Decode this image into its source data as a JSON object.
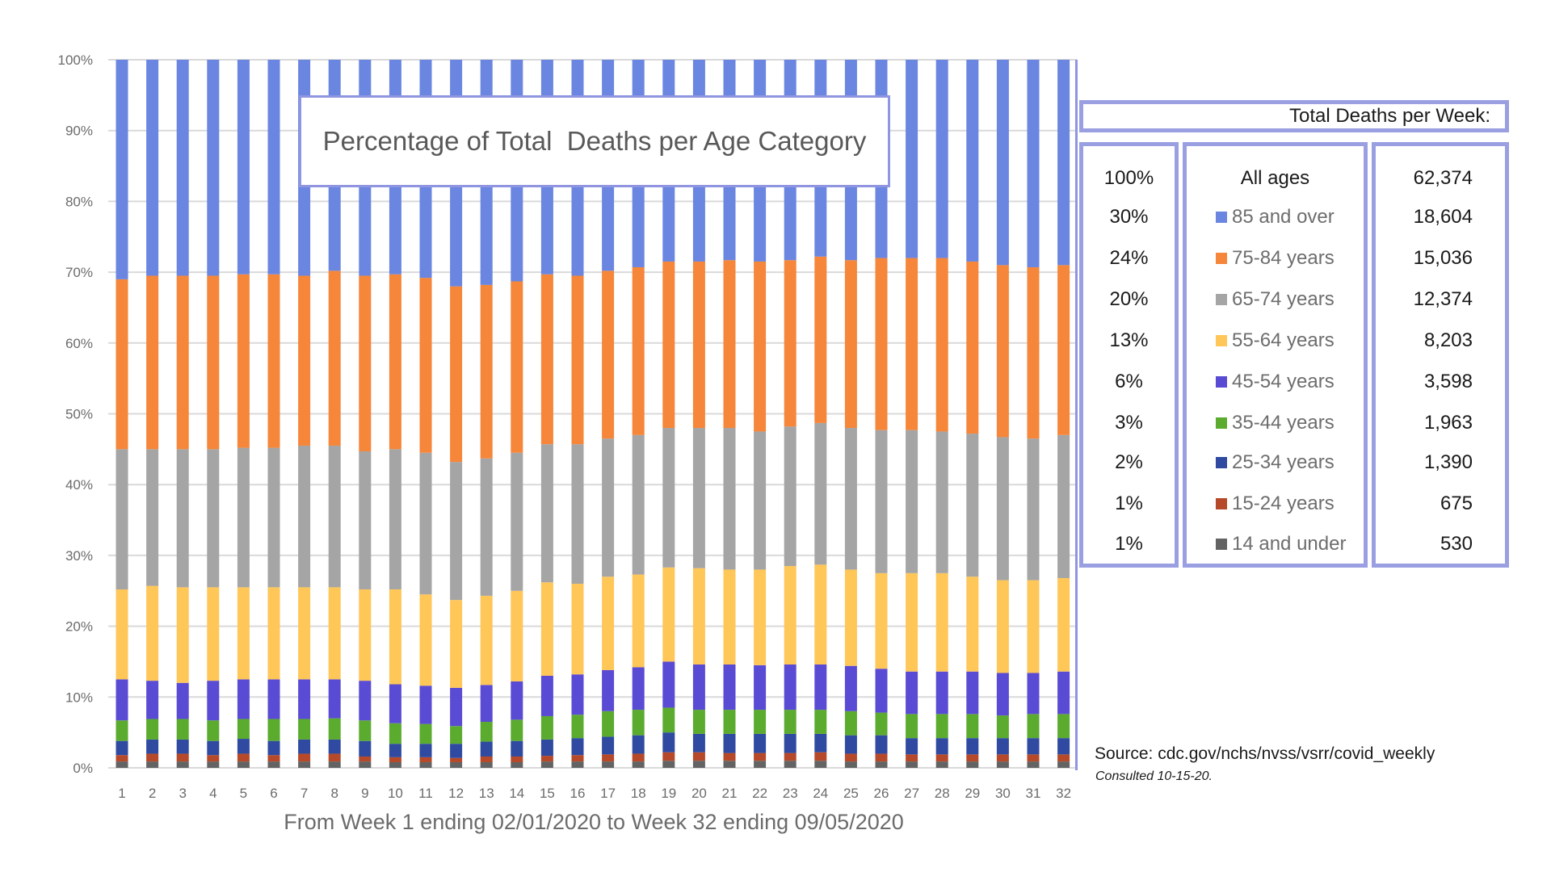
{
  "chart_data": {
    "type": "bar",
    "stacked": "percent",
    "title": "Percentage of Total  Deaths per Age Category",
    "xlabel": "From Week 1 ending 02/01/2020 to Week 32 ending 09/05/2020",
    "ylabel": "",
    "ylim": [
      0,
      100
    ],
    "yticks": [
      "0%",
      "10%",
      "20%",
      "30%",
      "40%",
      "50%",
      "60%",
      "70%",
      "80%",
      "90%",
      "100%"
    ],
    "grid": true,
    "categories": [
      "1",
      "2",
      "3",
      "4",
      "5",
      "6",
      "7",
      "8",
      "9",
      "10",
      "11",
      "12",
      "13",
      "14",
      "15",
      "16",
      "17",
      "18",
      "19",
      "20",
      "21",
      "22",
      "23",
      "24",
      "25",
      "26",
      "27",
      "28",
      "29",
      "30",
      "31",
      "32"
    ],
    "series": [
      {
        "name": "14 and under",
        "color": "#636363",
        "values": [
          0.9,
          0.9,
          0.9,
          0.9,
          0.9,
          0.9,
          0.9,
          0.9,
          0.9,
          0.8,
          0.8,
          0.8,
          0.8,
          0.8,
          0.9,
          0.9,
          0.9,
          0.9,
          1.0,
          1.0,
          1.0,
          1.0,
          1.0,
          1.0,
          0.9,
          0.9,
          0.9,
          0.9,
          0.9,
          0.9,
          0.9,
          0.9
        ]
      },
      {
        "name": "15-24 years",
        "color": "#b5492a",
        "values": [
          0.9,
          1.1,
          1.1,
          0.9,
          1.1,
          0.9,
          1.1,
          1.1,
          0.7,
          0.7,
          0.7,
          0.6,
          0.8,
          0.8,
          0.8,
          0.9,
          1.0,
          1.1,
          1.2,
          1.2,
          1.1,
          1.1,
          1.1,
          1.2,
          1.1,
          1.1,
          1.0,
          1.0,
          1.0,
          1.0,
          1.0,
          1.0
        ]
      },
      {
        "name": "25-34 years",
        "color": "#2f4aa0",
        "values": [
          2.0,
          2.0,
          2.0,
          2.0,
          2.1,
          2.0,
          2.0,
          2.0,
          2.2,
          1.9,
          1.9,
          2.0,
          2.1,
          2.2,
          2.3,
          2.4,
          2.5,
          2.6,
          2.8,
          2.6,
          2.7,
          2.7,
          2.7,
          2.6,
          2.6,
          2.6,
          2.3,
          2.3,
          2.3,
          2.3,
          2.3,
          2.3
        ]
      },
      {
        "name": "35-44 years",
        "color": "#5bab2f",
        "values": [
          2.9,
          2.9,
          2.9,
          2.9,
          2.8,
          3.1,
          2.9,
          3.0,
          2.9,
          2.9,
          2.8,
          2.5,
          2.8,
          3.0,
          3.3,
          3.3,
          3.6,
          3.6,
          3.5,
          3.4,
          3.4,
          3.4,
          3.4,
          3.4,
          3.4,
          3.2,
          3.4,
          3.4,
          3.4,
          3.2,
          3.4,
          3.4
        ]
      },
      {
        "name": "45-54 years",
        "color": "#5a4bd4",
        "values": [
          5.8,
          5.4,
          5.1,
          5.6,
          5.6,
          5.6,
          5.6,
          5.5,
          5.6,
          5.5,
          5.4,
          5.4,
          5.2,
          5.4,
          5.7,
          5.7,
          5.8,
          6.0,
          6.5,
          6.4,
          6.4,
          6.3,
          6.4,
          6.4,
          6.4,
          6.2,
          6.0,
          6.0,
          6.0,
          6.0,
          5.8,
          6.0
        ]
      },
      {
        "name": "55-64 years",
        "color": "#ffc658",
        "values": [
          12.7,
          13.4,
          13.5,
          13.2,
          13.0,
          13.0,
          13.0,
          13.0,
          12.9,
          13.4,
          12.9,
          12.4,
          12.6,
          12.8,
          13.2,
          12.8,
          13.2,
          13.1,
          13.3,
          13.6,
          13.4,
          13.5,
          13.9,
          14.1,
          13.6,
          13.5,
          13.9,
          13.9,
          13.4,
          13.1,
          13.1,
          13.2
        ]
      },
      {
        "name": "65-74 years",
        "color": "#a5a5a5",
        "values": [
          19.8,
          19.3,
          19.5,
          19.5,
          19.7,
          19.7,
          20.0,
          20.0,
          19.5,
          19.8,
          20.0,
          19.5,
          19.4,
          19.5,
          19.5,
          19.7,
          19.5,
          19.7,
          19.7,
          19.8,
          20.0,
          19.5,
          19.7,
          20.0,
          20.0,
          20.2,
          20.2,
          20.0,
          20.2,
          20.2,
          20.0,
          20.2
        ]
      },
      {
        "name": "75-84 years",
        "color": "#f5863a",
        "values": [
          24.0,
          24.5,
          24.5,
          24.5,
          24.5,
          24.5,
          24.0,
          24.7,
          24.8,
          24.7,
          24.7,
          24.8,
          24.5,
          24.2,
          24.0,
          23.8,
          23.7,
          23.7,
          23.5,
          23.5,
          23.7,
          24.0,
          23.5,
          23.5,
          23.7,
          24.3,
          24.3,
          24.5,
          24.3,
          24.3,
          24.2,
          24.0
        ]
      },
      {
        "name": "85 and over",
        "color": "#6a86e0",
        "values": [
          31.0,
          30.5,
          30.5,
          30.5,
          30.3,
          30.3,
          30.5,
          29.8,
          30.5,
          30.3,
          30.8,
          32.0,
          31.8,
          31.3,
          30.3,
          30.5,
          29.8,
          29.3,
          28.5,
          28.5,
          28.3,
          28.5,
          28.3,
          27.8,
          28.3,
          28.0,
          28.0,
          28.0,
          28.5,
          29.0,
          29.3,
          29.0
        ]
      }
    ]
  },
  "summary_table": {
    "header": "Total Deaths per Week:",
    "rows": [
      {
        "pct": "100%",
        "label": "All ages",
        "total": "62,374",
        "color": ""
      },
      {
        "pct": "30%",
        "label": "85 and over",
        "total": "18,604",
        "color": "#6a86e0"
      },
      {
        "pct": "24%",
        "label": "75-84 years",
        "total": "15,036",
        "color": "#f5863a"
      },
      {
        "pct": "20%",
        "label": "65-74 years",
        "total": "12,374",
        "color": "#a5a5a5"
      },
      {
        "pct": "13%",
        "label": "55-64 years",
        "total": "8,203",
        "color": "#ffc658"
      },
      {
        "pct": "6%",
        "label": "45-54 years",
        "total": "3,598",
        "color": "#5a4bd4"
      },
      {
        "pct": "3%",
        "label": "35-44 years",
        "total": "1,963",
        "color": "#5bab2f"
      },
      {
        "pct": "2%",
        "label": "25-34 years",
        "total": "1,390",
        "color": "#2f4aa0"
      },
      {
        "pct": "1%",
        "label": "15-24 years",
        "total": "675",
        "color": "#b5492a"
      },
      {
        "pct": "1%",
        "label": "14 and under",
        "total": "530",
        "color": "#636363"
      }
    ]
  },
  "source": {
    "text": "Source: cdc.gov/nchs/nvss/vsrr/covid_weekly",
    "consulted": "Consulted 10-15-20."
  }
}
